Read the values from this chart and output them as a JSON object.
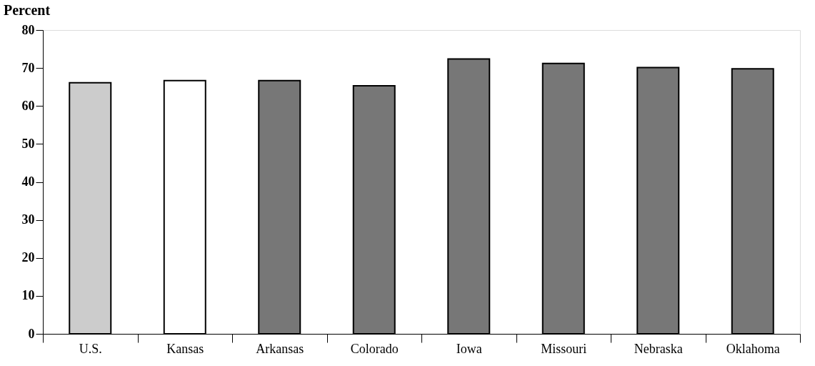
{
  "chart_data": {
    "type": "bar",
    "ylabel": "Percent",
    "categories": [
      "U.S.",
      "Kansas",
      "Arkansas",
      "Colorado",
      "Iowa",
      "Missouri",
      "Nebraska",
      "Oklahoma"
    ],
    "values": [
      66.1,
      66.7,
      66.7,
      65.3,
      72.4,
      71.2,
      70.1,
      69.8
    ],
    "colors": [
      "#cccccc",
      "#ffffff",
      "#777777",
      "#777777",
      "#777777",
      "#777777",
      "#777777",
      "#777777"
    ],
    "ylim": [
      0,
      80
    ],
    "yticks": [
      0,
      10,
      20,
      30,
      40,
      50,
      60,
      70,
      80
    ],
    "grid": false
  }
}
